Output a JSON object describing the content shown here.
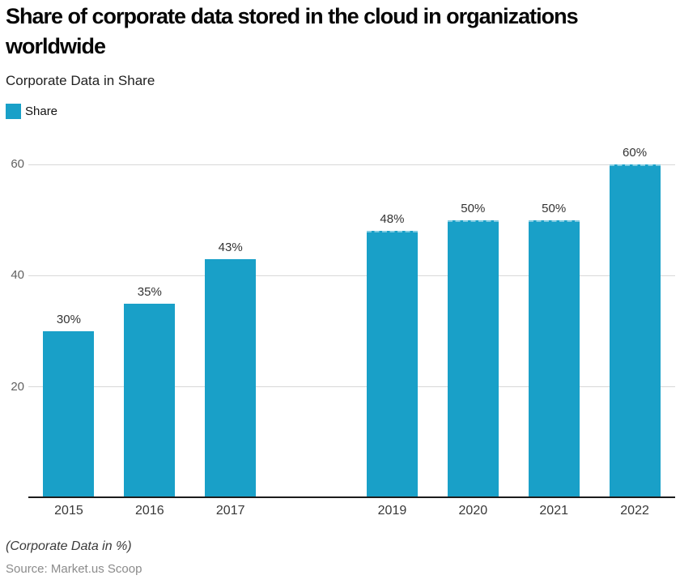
{
  "chart_data": {
    "type": "bar",
    "title": "Share of corporate data stored in the cloud in organizations worldwide",
    "subtitle": "Corporate Data in Share",
    "legend": {
      "label": "Share",
      "color": "#19a0c8",
      "position": "top-left"
    },
    "categories": [
      "2015",
      "2016",
      "2017",
      "",
      "2019",
      "2020",
      "2021",
      "2022"
    ],
    "values": [
      30,
      35,
      43,
      null,
      48,
      50,
      50,
      60
    ],
    "bar_labels": [
      "30%",
      "35%",
      "43%",
      "",
      "48%",
      "50%",
      "50%",
      "60%"
    ],
    "dashed_top_indices": [
      4,
      5,
      6,
      7
    ],
    "yticks": [
      20,
      40,
      60
    ],
    "ylim": [
      0,
      65
    ],
    "xlabel": "",
    "ylabel": "",
    "grid": "horizontal",
    "colors": {
      "bar": "#19a0c8",
      "gridline": "#d8d8d8",
      "axis": "#1c1c1c",
      "y_tick_label": "#616161",
      "value_label": "#333333",
      "x_label": "#383838"
    }
  },
  "footer": {
    "note": "(Corporate Data in %)",
    "source": "Source: Market.us Scoop"
  }
}
